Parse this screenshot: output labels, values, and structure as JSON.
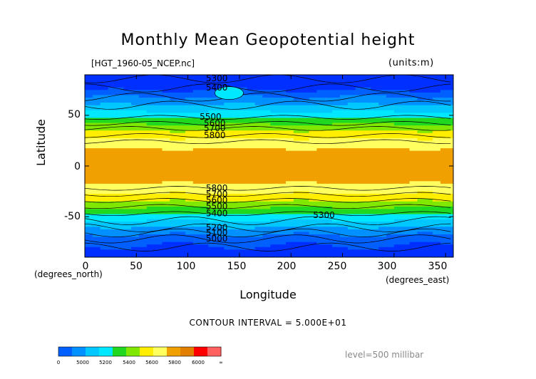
{
  "chart_data": {
    "type": "heatmap",
    "title": "Monthly Mean Geopotential height",
    "subtitle": "[HGT_1960-05_NCEP.nc]",
    "units": "(units:m)",
    "xlabel": "Longitude",
    "ylabel": "Latitude",
    "x_unit": "(degrees_east)",
    "y_unit": "(degrees_north)",
    "xlim": [
      0,
      357.5
    ],
    "ylim": [
      -90,
      90
    ],
    "xticks": [
      "0",
      "50",
      "100",
      "150",
      "200",
      "250",
      "300",
      "350"
    ],
    "yticks": [
      "50",
      "0",
      "-50"
    ],
    "contour_interval": "CONTOUR INTERVAL = 5.000E+01",
    "level": "level=500 millibar",
    "colorbar": {
      "labels": [
        "0",
        "5000",
        "5200",
        "5400",
        "5600",
        "5800",
        "6000",
        "∞"
      ],
      "colors": [
        "#0060ff",
        "#0090ff",
        "#00c8ff",
        "#00e8ff",
        "#20d820",
        "#80e800",
        "#ffee00",
        "#ffff60",
        "#f0a000",
        "#e08000",
        "#ff0000",
        "#ff6060"
      ]
    },
    "contour_labels": [
      {
        "text": "5300",
        "lon": 128,
        "lat": 86
      },
      {
        "text": "5400",
        "lon": 128,
        "lat": 77
      },
      {
        "text": "5500",
        "lon": 122,
        "lat": 48
      },
      {
        "text": "5600",
        "lon": 126,
        "lat": 42
      },
      {
        "text": "5700",
        "lon": 126,
        "lat": 37
      },
      {
        "text": "5800",
        "lon": 126,
        "lat": 30
      },
      {
        "text": "5800",
        "lon": 128,
        "lat": -22
      },
      {
        "text": "5700",
        "lon": 128,
        "lat": -28
      },
      {
        "text": "5600",
        "lon": 128,
        "lat": -34
      },
      {
        "text": "5500",
        "lon": 128,
        "lat": -40
      },
      {
        "text": "5400",
        "lon": 128,
        "lat": -47
      },
      {
        "text": "5300",
        "lon": 232,
        "lat": -49
      },
      {
        "text": "5200",
        "lon": 128,
        "lat": -61
      },
      {
        "text": "5100",
        "lon": 128,
        "lat": -66
      },
      {
        "text": "5000",
        "lon": 128,
        "lat": -72
      }
    ]
  }
}
